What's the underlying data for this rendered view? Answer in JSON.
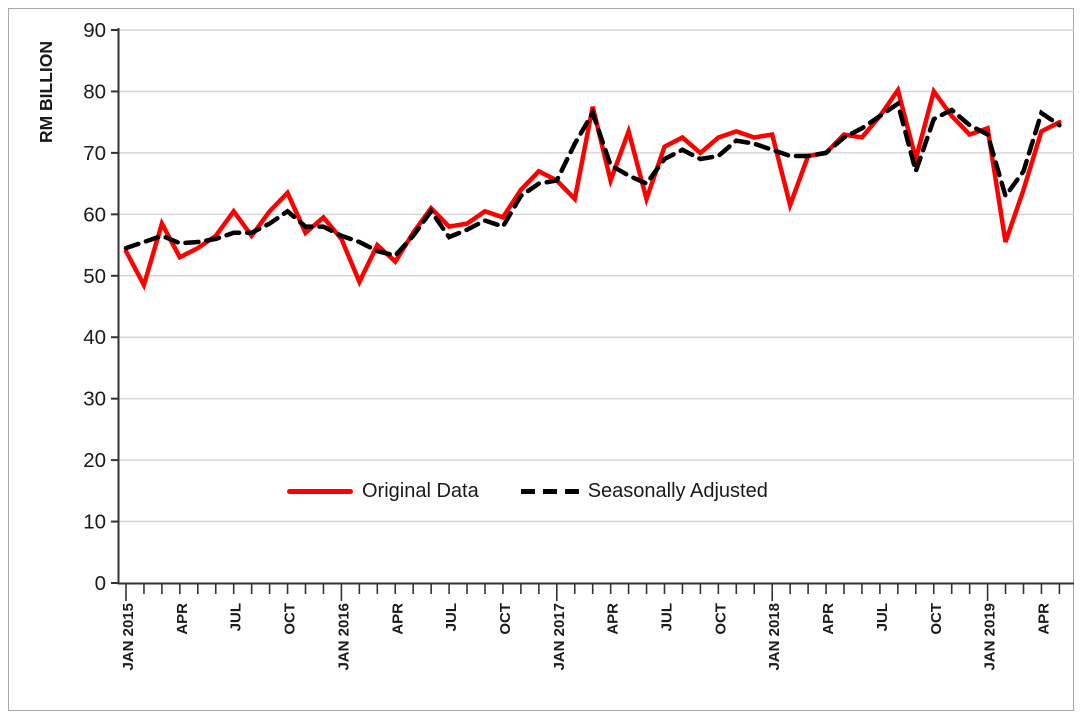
{
  "chart": {
    "y_axis_title": "RM BILLION",
    "y_ticks": [
      0,
      10,
      20,
      30,
      40,
      50,
      60,
      70,
      80,
      90
    ],
    "x_tick_labels": [
      "JAN 2015",
      "APR",
      "JUL",
      "OCT",
      "JAN 2016",
      "APR",
      "JUL",
      "OCT",
      "JAN 2017",
      "APR",
      "JUL",
      "OCT",
      "JAN 2018",
      "APR",
      "JUL",
      "OCT",
      "JAN 2019",
      "APR"
    ],
    "legend": {
      "original": "Original Data",
      "adjusted": "Seasonally Adjusted"
    },
    "colors": {
      "original": "#ff0000",
      "adjusted": "#000000",
      "gridline": "#d6d6d6",
      "axis": "#333333",
      "text": "#1a1a1a",
      "border": "#a8a8a8"
    }
  },
  "chart_data": {
    "type": "line",
    "title": "",
    "xlabel": "",
    "ylabel": "RM BILLION",
    "ylim": [
      0,
      90
    ],
    "grid": true,
    "legend_position": "inside-bottom-center",
    "x": [
      "JAN 2015",
      "FEB 2015",
      "MAR 2015",
      "APR 2015",
      "MAY 2015",
      "JUN 2015",
      "JUL 2015",
      "AUG 2015",
      "SEP 2015",
      "OCT 2015",
      "NOV 2015",
      "DEC 2015",
      "JAN 2016",
      "FEB 2016",
      "MAR 2016",
      "APR 2016",
      "MAY 2016",
      "JUN 2016",
      "JUL 2016",
      "AUG 2016",
      "SEP 2016",
      "OCT 2016",
      "NOV 2016",
      "DEC 2016",
      "JAN 2017",
      "FEB 2017",
      "MAR 2017",
      "APR 2017",
      "MAY 2017",
      "JUN 2017",
      "JUL 2017",
      "AUG 2017",
      "SEP 2017",
      "OCT 2017",
      "NOV 2017",
      "DEC 2017",
      "JAN 2018",
      "FEB 2018",
      "MAR 2018",
      "APR 2018",
      "MAY 2018",
      "JUN 2018",
      "JUL 2018",
      "AUG 2018",
      "SEP 2018",
      "OCT 2018",
      "NOV 2018",
      "DEC 2018",
      "JAN 2019",
      "FEB 2019",
      "MAR 2019",
      "APR 2019",
      "MAY 2019"
    ],
    "series": [
      {
        "name": "Original Data",
        "style": "solid",
        "color": "#ff0000",
        "values": [
          54,
          48.5,
          58.5,
          53,
          54.5,
          56.5,
          60.5,
          56.5,
          60.5,
          63.5,
          57,
          59.5,
          56,
          49,
          55,
          52.3,
          57,
          61,
          58,
          58.5,
          60.5,
          59.5,
          64,
          67,
          65.5,
          62.5,
          77.5,
          65.5,
          73.5,
          62.5,
          71,
          72.5,
          70,
          72.5,
          73.5,
          72.5,
          73,
          61.5,
          69.5,
          70,
          73,
          72.5,
          76,
          80.2,
          69,
          80,
          76,
          73,
          74,
          55.5,
          64,
          73.5,
          75
        ]
      },
      {
        "name": "Seasonally Adjusted",
        "style": "dashed",
        "color": "#000000",
        "values": [
          54.5,
          55.5,
          56.5,
          55.3,
          55.5,
          56,
          57,
          57,
          58.5,
          60.5,
          58,
          58,
          56.5,
          55.5,
          54,
          53.3,
          56.5,
          60.5,
          56.3,
          57.5,
          59,
          58,
          63,
          65,
          65.5,
          71.5,
          76.5,
          68,
          66.3,
          65,
          69,
          70.5,
          69,
          69.5,
          72,
          71.5,
          70.5,
          69.5,
          69.5,
          70,
          72.5,
          74,
          76,
          78,
          67,
          75.5,
          77,
          74.5,
          73,
          63,
          67,
          76.5,
          74.5
        ]
      }
    ]
  }
}
